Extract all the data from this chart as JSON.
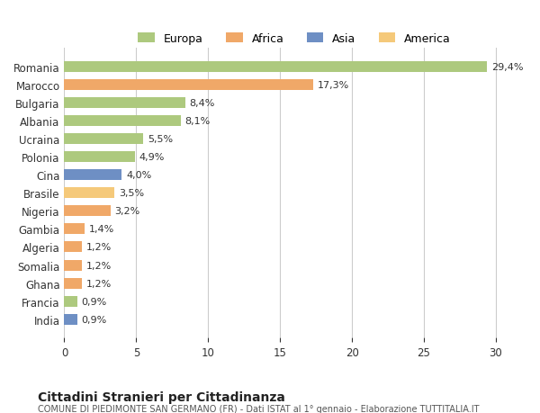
{
  "categories": [
    "Romania",
    "Marocco",
    "Bulgaria",
    "Albania",
    "Ucraina",
    "Polonia",
    "Cina",
    "Brasile",
    "Nigeria",
    "Gambia",
    "Algeria",
    "Somalia",
    "Ghana",
    "Francia",
    "India"
  ],
  "values": [
    29.4,
    17.3,
    8.4,
    8.1,
    5.5,
    4.9,
    4.0,
    3.5,
    3.2,
    1.4,
    1.2,
    1.2,
    1.2,
    0.9,
    0.9
  ],
  "labels": [
    "29,4%",
    "17,3%",
    "8,4%",
    "8,1%",
    "5,5%",
    "4,9%",
    "4,0%",
    "3,5%",
    "3,2%",
    "1,4%",
    "1,2%",
    "1,2%",
    "1,2%",
    "0,9%",
    "0,9%"
  ],
  "colors": [
    "#adc97e",
    "#f0a868",
    "#adc97e",
    "#adc97e",
    "#adc97e",
    "#adc97e",
    "#6e8fc4",
    "#f5c97a",
    "#f0a868",
    "#f0a868",
    "#f0a868",
    "#f0a868",
    "#f0a868",
    "#adc97e",
    "#6e8fc4"
  ],
  "legend_labels": [
    "Europa",
    "Africa",
    "Asia",
    "America"
  ],
  "legend_colors": [
    "#adc97e",
    "#f0a868",
    "#6e8fc4",
    "#f5c97a"
  ],
  "title": "Cittadini Stranieri per Cittadinanza",
  "subtitle": "COMUNE DI PIEDIMONTE SAN GERMANO (FR) - Dati ISTAT al 1° gennaio - Elaborazione TUTTITALIA.IT",
  "xlim": [
    0,
    32
  ],
  "xticks": [
    0,
    5,
    10,
    15,
    20,
    25,
    30
  ],
  "background_color": "#ffffff",
  "grid_color": "#cccccc"
}
